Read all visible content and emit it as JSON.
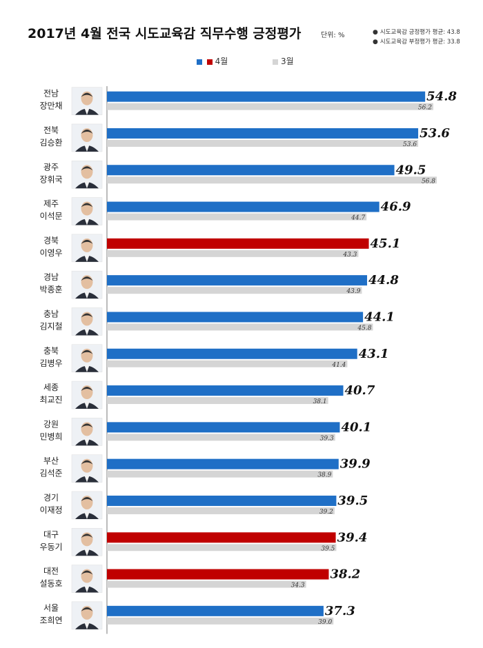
{
  "header": {
    "title": "2017년 4월 전국 시도교육감 직무수행 긍정평가",
    "unit": "단위: %",
    "stats": [
      {
        "bullet": "●",
        "text": "시도교육감 긍정평가 평균: 43.8"
      },
      {
        "bullet": "●",
        "text": "시도교육감 부정평가 평균: 33.8"
      }
    ]
  },
  "legend": [
    {
      "label": "4월",
      "colors": [
        "#1f6fc6",
        "#c00000"
      ]
    },
    {
      "label": "3월",
      "colors": [
        "#d5d5d5"
      ]
    }
  ],
  "colors": {
    "blue": "#1f6fc6",
    "red": "#c00000",
    "gray": "#d5d5d5"
  },
  "chart_data": {
    "type": "bar",
    "orientation": "horizontal",
    "xlim": [
      0,
      56.8
    ],
    "categories": [
      {
        "region": "전남",
        "name": "장만채",
        "april": 54.8,
        "march": 56.2,
        "color": "blue"
      },
      {
        "region": "전북",
        "name": "김승환",
        "april": 53.6,
        "march": 53.6,
        "color": "blue"
      },
      {
        "region": "광주",
        "name": "장휘국",
        "april": 49.5,
        "march": 56.8,
        "color": "blue"
      },
      {
        "region": "제주",
        "name": "이석문",
        "april": 46.9,
        "march": 44.7,
        "color": "blue"
      },
      {
        "region": "경북",
        "name": "이영우",
        "april": 45.1,
        "march": 43.3,
        "color": "red"
      },
      {
        "region": "경남",
        "name": "박종훈",
        "april": 44.8,
        "march": 43.9,
        "color": "blue"
      },
      {
        "region": "충남",
        "name": "김지철",
        "april": 44.1,
        "march": 45.8,
        "color": "blue"
      },
      {
        "region": "충북",
        "name": "김병우",
        "april": 43.1,
        "march": 41.4,
        "color": "blue"
      },
      {
        "region": "세종",
        "name": "최교진",
        "april": 40.7,
        "march": 38.1,
        "color": "blue"
      },
      {
        "region": "강원",
        "name": "민병희",
        "april": 40.1,
        "march": 39.3,
        "color": "blue"
      },
      {
        "region": "부산",
        "name": "김석준",
        "april": 39.9,
        "march": 38.9,
        "color": "blue"
      },
      {
        "region": "경기",
        "name": "이재정",
        "april": 39.5,
        "march": 39.2,
        "color": "blue"
      },
      {
        "region": "대구",
        "name": "우동기",
        "april": 39.4,
        "march": 39.5,
        "color": "red"
      },
      {
        "region": "대전",
        "name": "설동호",
        "april": 38.2,
        "march": 34.3,
        "color": "red"
      },
      {
        "region": "서울",
        "name": "조희연",
        "april": 37.3,
        "march": 39.0,
        "color": "blue"
      }
    ]
  }
}
